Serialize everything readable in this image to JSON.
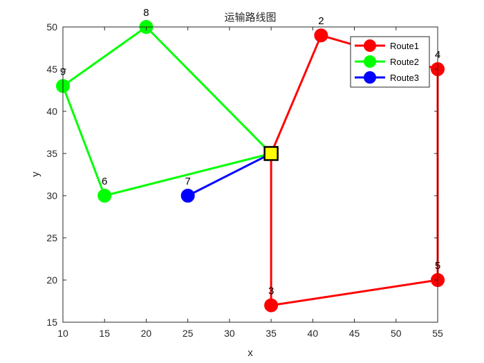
{
  "chart_data": {
    "type": "line",
    "title": "运输路线图",
    "xlabel": "x",
    "ylabel": "y",
    "xlim": [
      10,
      55
    ],
    "ylim": [
      15,
      50
    ],
    "xticks": [
      10,
      15,
      20,
      25,
      30,
      35,
      40,
      45,
      50,
      55
    ],
    "yticks": [
      15,
      20,
      25,
      30,
      35,
      40,
      45,
      50
    ],
    "grid": false,
    "legend_position": "top-right",
    "depot": {
      "x": 35,
      "y": 35,
      "color": "#ffff00"
    },
    "series": [
      {
        "name": "Route1",
        "color": "#ff0000",
        "x": [
          35,
          41,
          55,
          55,
          35,
          35
        ],
        "y": [
          35,
          49,
          45,
          20,
          17,
          35
        ]
      },
      {
        "name": "Route2",
        "color": "#00ff00",
        "x": [
          35,
          20,
          10,
          15,
          35
        ],
        "y": [
          35,
          50,
          43,
          30,
          35
        ]
      },
      {
        "name": "Route3",
        "color": "#0000ff",
        "x": [
          35,
          25
        ],
        "y": [
          35,
          30
        ]
      }
    ],
    "point_labels": [
      {
        "label": "2",
        "x": 41,
        "y": 49
      },
      {
        "label": "3",
        "x": 35,
        "y": 17
      },
      {
        "label": "4",
        "x": 55,
        "y": 45
      },
      {
        "label": "5",
        "x": 55,
        "y": 20
      },
      {
        "label": "6",
        "x": 15,
        "y": 30
      },
      {
        "label": "7",
        "x": 25,
        "y": 30
      },
      {
        "label": "8",
        "x": 20,
        "y": 50
      },
      {
        "label": "9",
        "x": 10,
        "y": 43
      }
    ]
  }
}
